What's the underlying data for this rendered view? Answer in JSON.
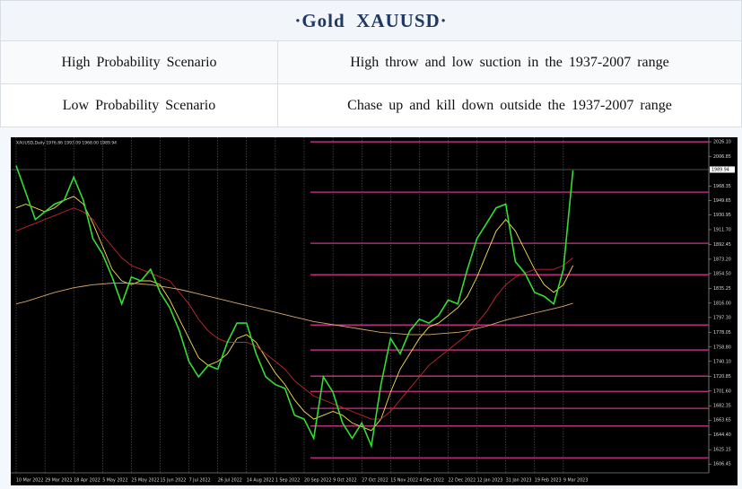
{
  "header": {
    "title": "·Gold  XAUUSD·"
  },
  "table": {
    "rows": [
      [
        "High Probability Scenario",
        "High throw and low suction in the 1937-2007 range"
      ],
      [
        "Low Probability Scenario",
        "Chase up and kill down outside the 1937-2007 range"
      ]
    ]
  },
  "chart_data": {
    "type": "line",
    "title": "XAUUSD,Daily  1976.86 1993.09 1968.00 1989.94",
    "categories": [
      "10 Mar 2022",
      null,
      null,
      "29 Mar 2022",
      null,
      null,
      "18 Apr 2022",
      null,
      null,
      "5 May 2022",
      null,
      null,
      "25 May 2022",
      null,
      null,
      "15 Jun 2022",
      null,
      null,
      "7 Jul 2022",
      null,
      null,
      "26 Jul 2022",
      null,
      null,
      "14 Aug 2022",
      null,
      null,
      "1 Sep 2022",
      null,
      null,
      "20 Sep 2022",
      null,
      null,
      "9 Oct 2022",
      null,
      null,
      "27 Oct 2022",
      null,
      null,
      "15 Nov 2022",
      null,
      null,
      "4 Dec 2022",
      null,
      null,
      "22 Dec 2022",
      null,
      null,
      "12 Jan 2023",
      null,
      null,
      "31 Jan 2023",
      null,
      null,
      "19 Feb 2023",
      null,
      null,
      "9 Mar 2023",
      null
    ],
    "series": [
      {
        "color": "#f4e04d",
        "values": [
          1940,
          1945,
          1940,
          1935,
          1940,
          1950,
          1955,
          1945,
          1920,
          1890,
          1860,
          1845,
          1840,
          1845,
          1845,
          1840,
          1820,
          1795,
          1770,
          1745,
          1735,
          1740,
          1750,
          1770,
          1775,
          1765,
          1745,
          1725,
          1710,
          1690,
          1675,
          1665,
          1670,
          1675,
          1670,
          1660,
          1655,
          1650,
          1665,
          1700,
          1730,
          1750,
          1770,
          1785,
          1790,
          1800,
          1810,
          1825,
          1850,
          1880,
          1910,
          1925,
          1910,
          1885,
          1860,
          1840,
          1830,
          1840,
          1865
        ]
      },
      {
        "color": "#c0282d",
        "values": [
          1910,
          1915,
          1920,
          1925,
          1930,
          1935,
          1940,
          1935,
          1925,
          1905,
          1890,
          1875,
          1865,
          1860,
          1855,
          1850,
          1845,
          1830,
          1815,
          1795,
          1780,
          1770,
          1765,
          1765,
          1765,
          1760,
          1750,
          1740,
          1730,
          1715,
          1705,
          1695,
          1690,
          1685,
          1680,
          1675,
          1670,
          1665,
          1665,
          1675,
          1690,
          1705,
          1720,
          1735,
          1745,
          1755,
          1765,
          1775,
          1790,
          1805,
          1825,
          1840,
          1850,
          1855,
          1860,
          1860,
          1860,
          1865,
          1875
        ]
      },
      {
        "color": "#d6a86a",
        "values": [
          1815,
          1818,
          1822,
          1826,
          1830,
          1833,
          1836,
          1838,
          1840,
          1841,
          1842,
          1842,
          1842,
          1841,
          1840,
          1838,
          1836,
          1834,
          1831,
          1828,
          1825,
          1822,
          1819,
          1816,
          1813,
          1810,
          1807,
          1804,
          1801,
          1798,
          1795,
          1792,
          1790,
          1788,
          1786,
          1784,
          1782,
          1780,
          1778,
          1777,
          1776,
          1775,
          1775,
          1775,
          1776,
          1777,
          1778,
          1780,
          1783,
          1786,
          1790,
          1794,
          1797,
          1800,
          1803,
          1806,
          1809,
          1812,
          1816
        ]
      },
      {
        "color": "#33dd33",
        "values": [
          1995,
          1960,
          1925,
          1935,
          1945,
          1950,
          1980,
          1950,
          1900,
          1880,
          1850,
          1815,
          1850,
          1845,
          1860,
          1830,
          1810,
          1780,
          1740,
          1720,
          1735,
          1730,
          1765,
          1790,
          1790,
          1750,
          1720,
          1710,
          1705,
          1670,
          1665,
          1640,
          1720,
          1700,
          1660,
          1640,
          1660,
          1630,
          1710,
          1770,
          1750,
          1780,
          1795,
          1790,
          1800,
          1820,
          1815,
          1860,
          1900,
          1920,
          1940,
          1945,
          1870,
          1855,
          1830,
          1825,
          1815,
          1860,
          1989
        ]
      }
    ],
    "levels": [
      2026.1,
      1960.6,
      1894,
      1853,
      1787.6,
      1755,
      1721,
      1701,
      1679,
      1656,
      1614.6
    ],
    "level_color": "#d0308a",
    "last_price": 1989.94,
    "ylim": [
      1595,
      2032
    ],
    "yticks": [
      {
        "value": 2026.1,
        "label": "2026.10"
      },
      2006.85,
      1968.35,
      1949.65,
      1930.95,
      {
        "value": 1911.7,
        "label": "1911.70"
      },
      1892.45,
      {
        "value": 1873.2,
        "label": "1873.20"
      },
      {
        "value": 1854.5,
        "label": "1854.50"
      },
      1835.25,
      {
        "value": 1816,
        "label": "1816.00"
      },
      {
        "value": 1797.3,
        "label": "1797.30"
      },
      1778.05,
      {
        "value": 1758.8,
        "label": "1758.80"
      },
      {
        "value": 1740.1,
        "label": "1740.10"
      },
      1720.85,
      {
        "value": 1701.6,
        "label": "1701.60"
      },
      1682.35,
      1663.65,
      {
        "value": 1644.4,
        "label": "1644.40"
      },
      1625.15,
      1606.45
    ],
    "grid": true
  }
}
